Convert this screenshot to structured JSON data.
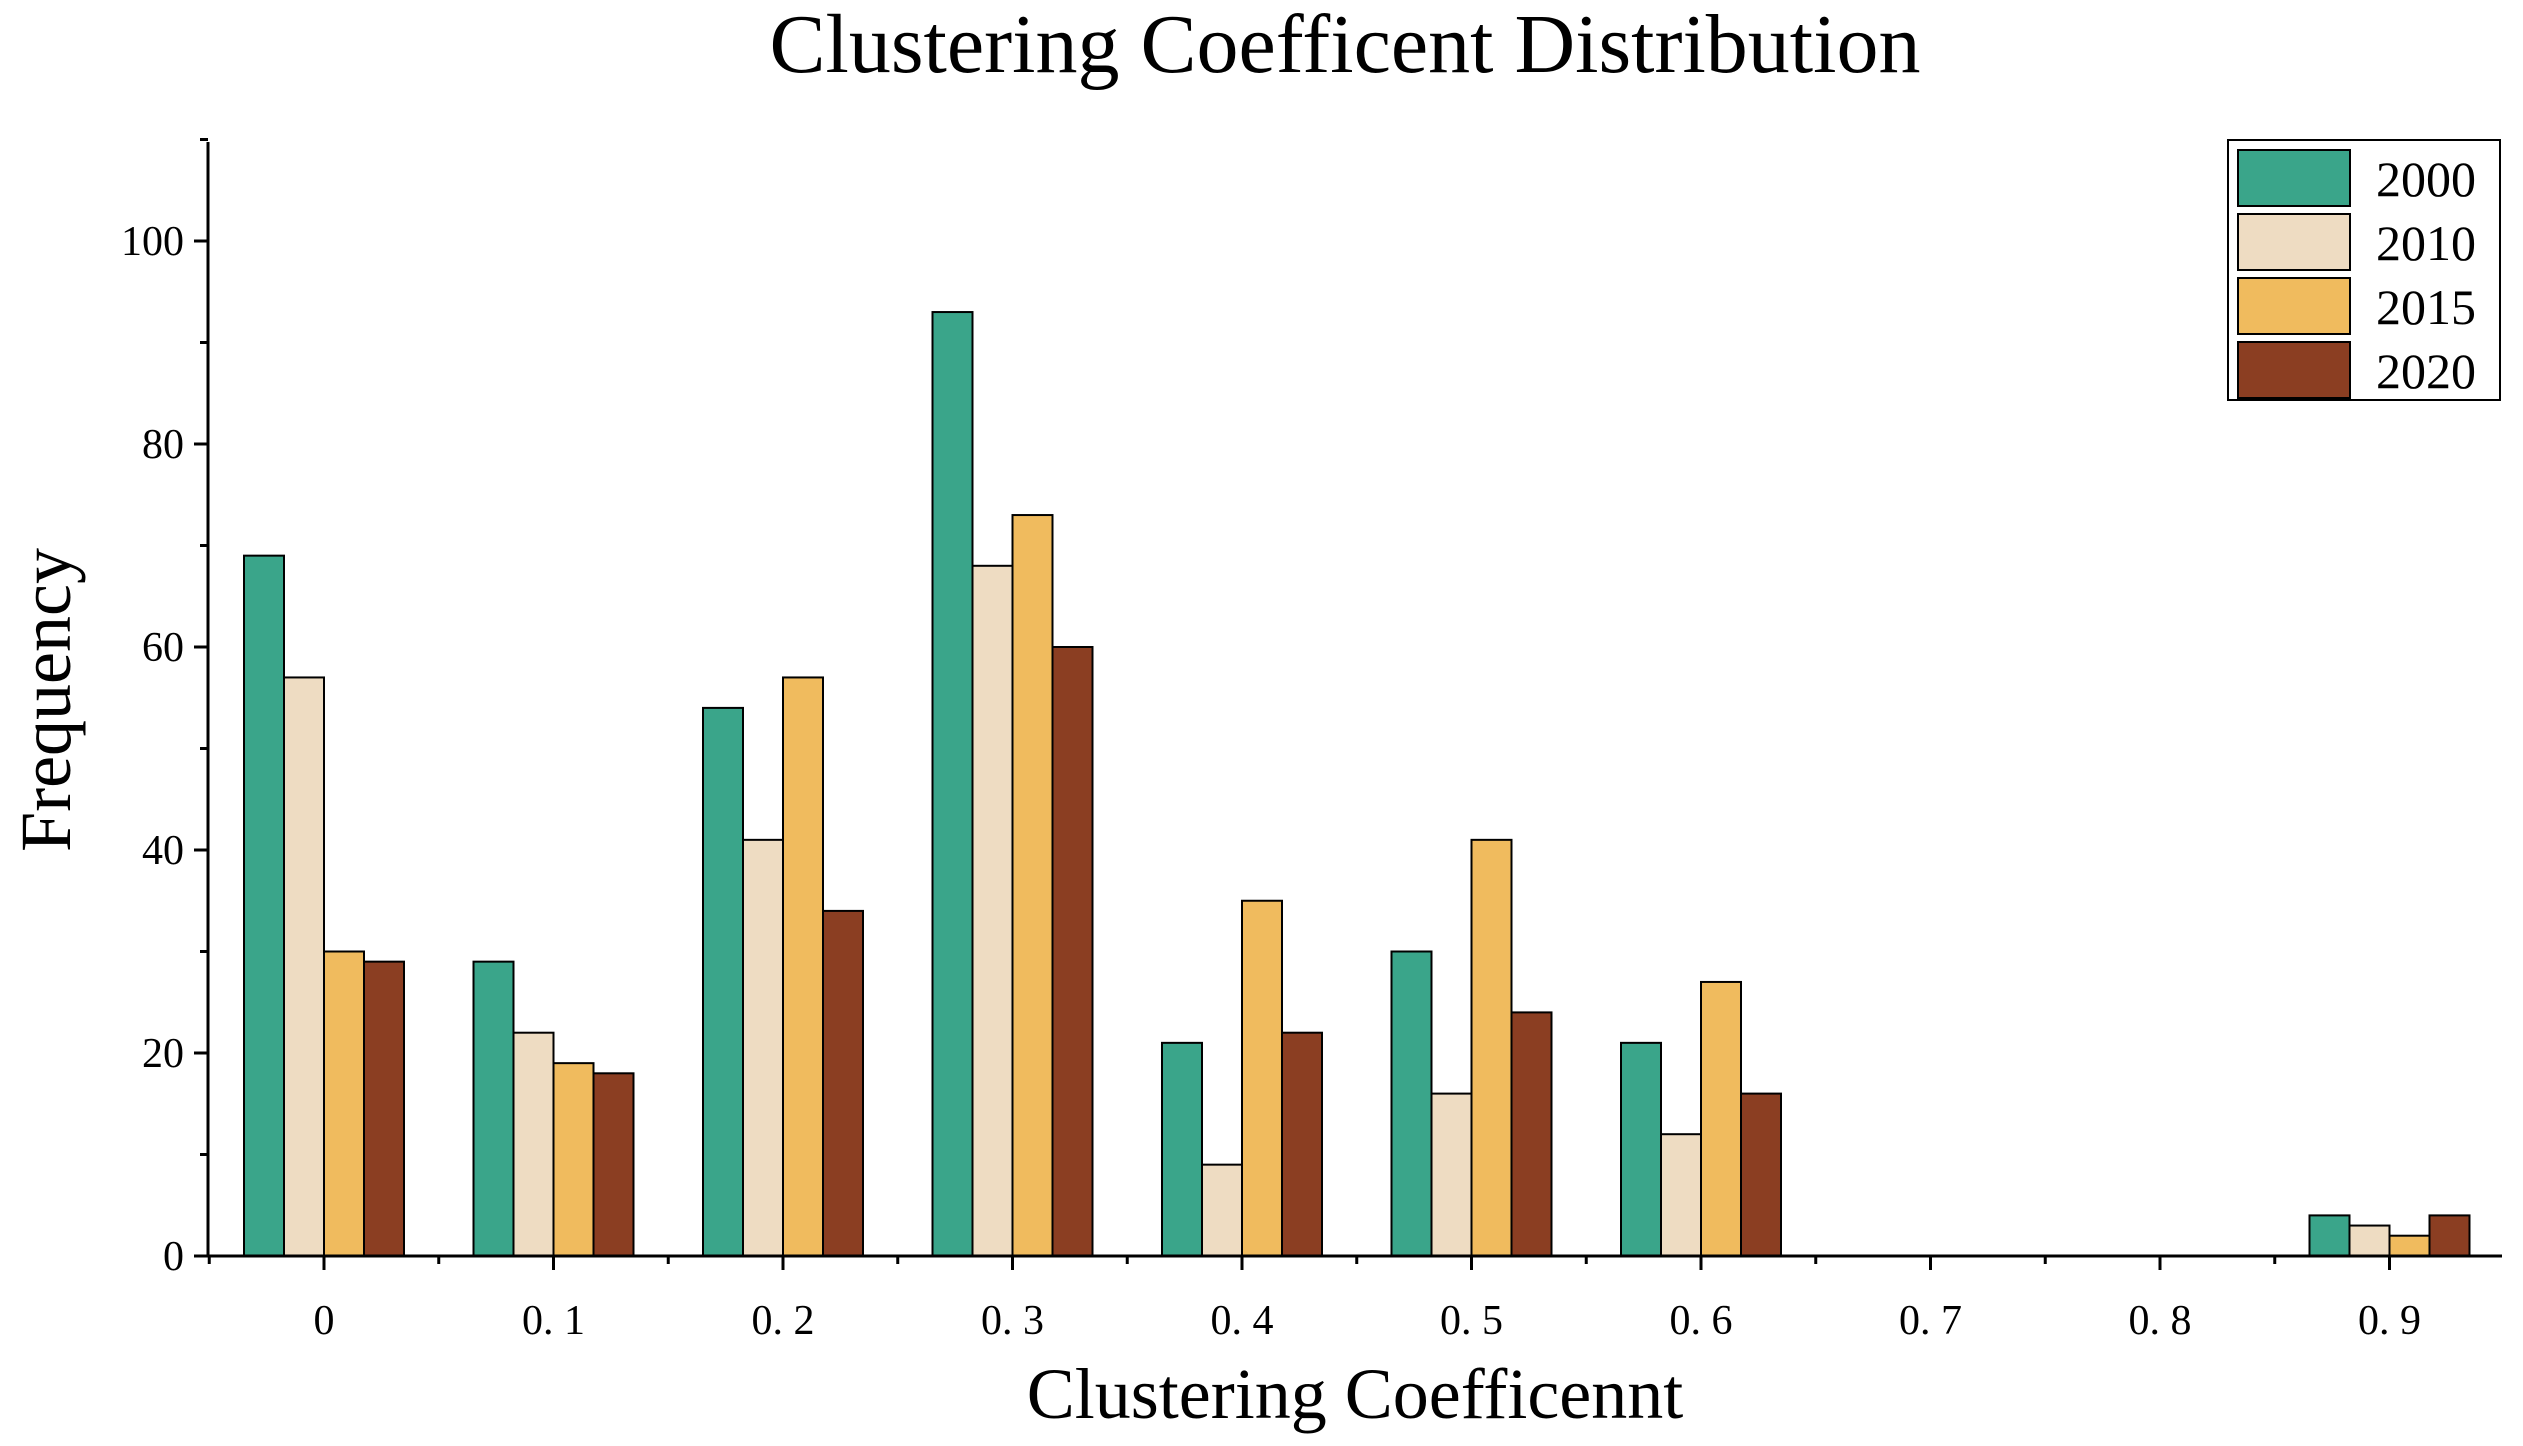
{
  "chart_data": {
    "type": "bar",
    "title": "Clustering Coefficent Distribution",
    "xlabel": "Clustering Coefficennt",
    "ylabel": "Frequency",
    "categories": [
      "0",
      "0. 1",
      "0. 2",
      "0. 3",
      "0. 4",
      "0. 5",
      "0. 6",
      "0. 7",
      "0. 8",
      "0. 9"
    ],
    "ylim": [
      0,
      110
    ],
    "yticks": [
      0,
      20,
      40,
      60,
      80,
      100
    ],
    "legend_position": "top-right",
    "series": [
      {
        "name": "2000",
        "color": "#3aa58a",
        "values": [
          69,
          29,
          54,
          93,
          21,
          30,
          21,
          0,
          0,
          4
        ]
      },
      {
        "name": "2010",
        "color": "#eedcc2",
        "values": [
          57,
          22,
          41,
          68,
          9,
          16,
          12,
          0,
          0,
          3
        ]
      },
      {
        "name": "2015",
        "color": "#f0bb5e",
        "values": [
          30,
          19,
          57,
          73,
          35,
          41,
          27,
          0,
          0,
          2
        ]
      },
      {
        "name": "2020",
        "color": "#8b3e22",
        "values": [
          29,
          18,
          34,
          60,
          22,
          24,
          16,
          0,
          0,
          4
        ]
      }
    ]
  }
}
